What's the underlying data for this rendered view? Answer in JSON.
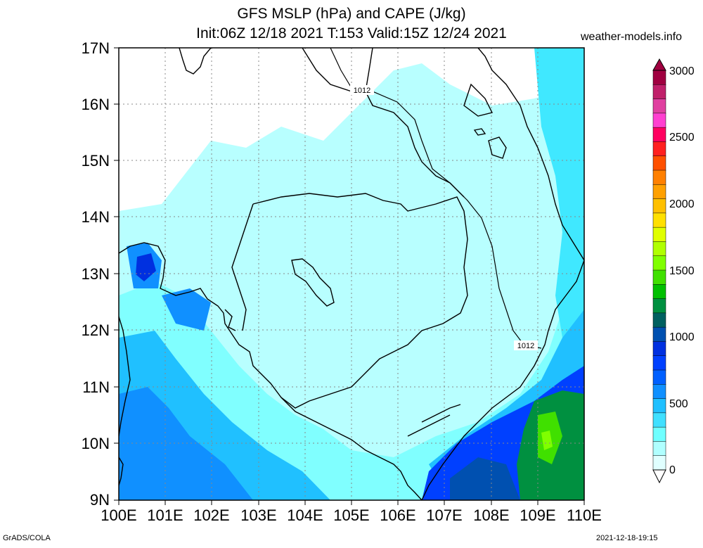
{
  "header": {
    "title_line1": "GFS MSLP (hPa) and CAPE (J/kg)",
    "title_line2": "Init:06Z 12/18 2021 T:153 Valid:15Z 12/24 2021",
    "site": "weather-models.info"
  },
  "axes": {
    "lat_labels": [
      "17N",
      "16N",
      "15N",
      "14N",
      "13N",
      "12N",
      "11N",
      "10N",
      "9N"
    ],
    "lon_labels": [
      "100E",
      "101E",
      "102E",
      "103E",
      "104E",
      "105E",
      "106E",
      "107E",
      "108E",
      "109E",
      "110E"
    ]
  },
  "contours": {
    "isobar_label_1": "1012",
    "isobar_label_2": "1012"
  },
  "colorbar": {
    "labels": [
      "3000",
      "2500",
      "2000",
      "1500",
      "1000",
      "500",
      "0"
    ],
    "colors": [
      "#a00040",
      "#c0206a",
      "#e040a0",
      "#ff40d0",
      "#ff0060",
      "#ff2020",
      "#ff5000",
      "#ff8000",
      "#ffa000",
      "#ffc000",
      "#ffe000",
      "#e0ff00",
      "#b0ff00",
      "#80ff00",
      "#40e000",
      "#00c000",
      "#009040",
      "#006060",
      "#0050b0",
      "#0030e0",
      "#0040ff",
      "#0060ff",
      "#1090ff",
      "#20c0ff",
      "#40e0ff",
      "#70ffff",
      "#b0ffff",
      "#e0ffff"
    ]
  },
  "footer": {
    "left": "GrADS/COLA",
    "right": "2021-12-18-19:15"
  }
}
